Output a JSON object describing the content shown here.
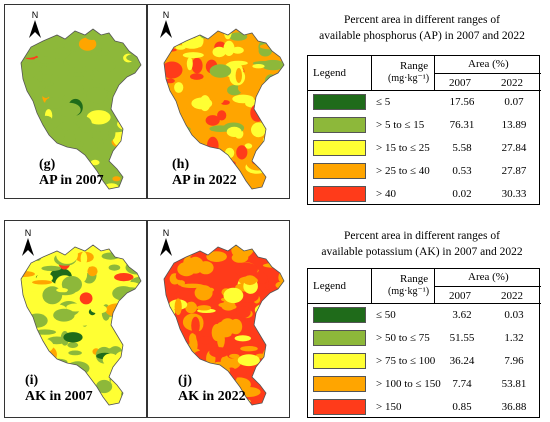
{
  "colors": {
    "class1": "#1f6b1a",
    "class2": "#8db83a",
    "class3": "#ffff33",
    "class4": "#ffa500",
    "class5": "#ff3b1a",
    "map_background": "#ffffff"
  },
  "north_letter": "N",
  "maps": [
    {
      "id": "g",
      "label_id": "(g)",
      "label_text": "AP in 2007",
      "dominant": "class2"
    },
    {
      "id": "h",
      "label_id": "(h)",
      "label_text": "AP in 2022",
      "dominant": "class4"
    },
    {
      "id": "i",
      "label_id": "(i)",
      "label_text": "AK in 2007",
      "dominant": "class3"
    },
    {
      "id": "j",
      "label_id": "(j)",
      "label_text": "AK in 2022",
      "dominant": "class5"
    }
  ],
  "tables": [
    {
      "title_line1": "Percent area in different ranges of",
      "title_line2": "available phosphorus (AP) in 2007 and 2022",
      "legend_header": "Legend",
      "range_header": "Range",
      "unit_header": "(mg·kg⁻¹)",
      "area_header": "Area (%)",
      "year1": "2007",
      "year2": "2022",
      "rows": [
        {
          "range": "≤ 5",
          "v2007": "17.56",
          "v2022": "0.07",
          "color": "class1"
        },
        {
          "range": "> 5 to ≤ 15",
          "v2007": "76.31",
          "v2022": "13.89",
          "color": "class2"
        },
        {
          "range": "> 15 to ≤ 25",
          "v2007": "5.58",
          "v2022": "27.84",
          "color": "class3"
        },
        {
          "range": "> 25 to ≤ 40",
          "v2007": "0.53",
          "v2022": "27.87",
          "color": "class4"
        },
        {
          "range": "> 40",
          "v2007": "0.02",
          "v2022": "30.33",
          "color": "class5"
        }
      ]
    },
    {
      "title_line1": "Percent area in different ranges of",
      "title_line2": "available potassium (AK) in 2007 and 2022",
      "legend_header": "Legend",
      "range_header": "Range",
      "unit_header": "(mg·kg⁻¹)",
      "area_header": "Area (%)",
      "year1": "2007",
      "year2": "2022",
      "rows": [
        {
          "range": "≤ 50",
          "v2007": "3.62",
          "v2022": "0.03",
          "color": "class1"
        },
        {
          "range": "> 50 to ≤ 75",
          "v2007": "51.55",
          "v2022": "1.32",
          "color": "class2"
        },
        {
          "range": "> 75 to ≤ 100",
          "v2007": "36.24",
          "v2022": "7.96",
          "color": "class3"
        },
        {
          "range": "> 100 to ≤ 150",
          "v2007": "7.74",
          "v2022": "53.81",
          "color": "class4"
        },
        {
          "range": "> 150",
          "v2007": "0.85",
          "v2022": "36.88",
          "color": "class5"
        }
      ]
    }
  ]
}
